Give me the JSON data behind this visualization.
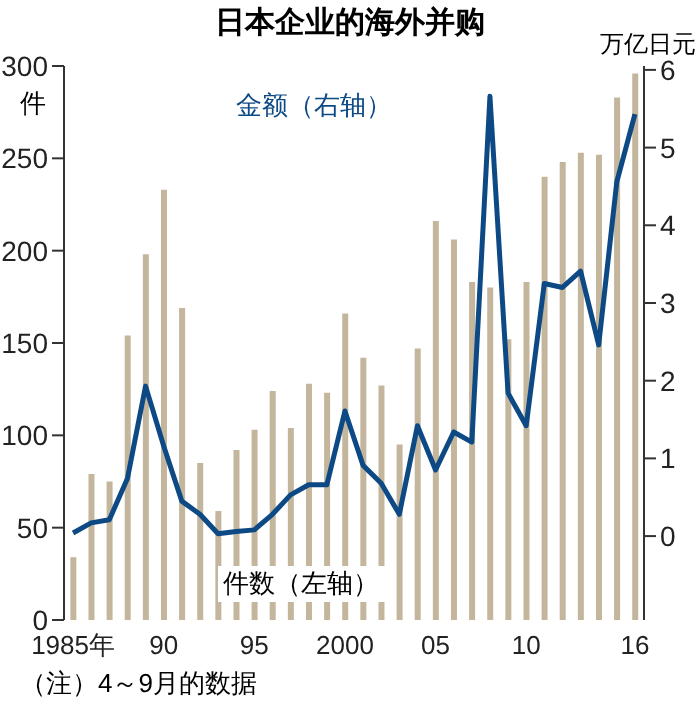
{
  "chart_data": {
    "type": "bar",
    "title": "日本企业的海外并购",
    "ylabel": "件",
    "y2label": "万亿日元",
    "annotations": [
      "（注）4～9月的数据"
    ],
    "categories": [
      "1985年",
      null,
      null,
      null,
      null,
      "90",
      null,
      null,
      null,
      null,
      "95",
      null,
      null,
      null,
      null,
      "2000",
      null,
      null,
      null,
      null,
      "05",
      null,
      null,
      null,
      null,
      "10",
      null,
      null,
      null,
      null,
      null,
      "16"
    ],
    "series": [
      {
        "name": "件数（左轴）",
        "color": "#c4b69c",
        "values": [
          34,
          79,
          75,
          154,
          198,
          233,
          169,
          85,
          59,
          92,
          103,
          124,
          104,
          128,
          123,
          166,
          142,
          127,
          95,
          147,
          216,
          206,
          183,
          180,
          152,
          183,
          240,
          248,
          253,
          252,
          283,
          296
        ]
      },
      {
        "name": "金额（右轴）",
        "type": "line",
        "axis": "y2",
        "color": "#0d4a85",
        "values": [
          0.04,
          0.17,
          0.21,
          0.74,
          1.93,
          1.16,
          0.45,
          0.28,
          0.03,
          0.06,
          0.08,
          0.28,
          0.53,
          0.66,
          0.66,
          1.61,
          0.91,
          0.68,
          0.28,
          1.42,
          0.85,
          1.34,
          1.21,
          5.66,
          1.84,
          1.42,
          3.25,
          3.2,
          3.41,
          2.46,
          4.56,
          5.43
        ]
      }
    ],
    "ylim": [
      0,
      300
    ],
    "yticks": [
      0,
      50,
      100,
      150,
      200,
      250,
      300
    ],
    "y2lim": [
      -1.08,
      6.05
    ],
    "y2ticks": [
      0,
      1,
      2,
      3,
      4,
      5,
      6
    ],
    "legend": false,
    "grid": false,
    "marker": "none",
    "line_style": "solid"
  }
}
